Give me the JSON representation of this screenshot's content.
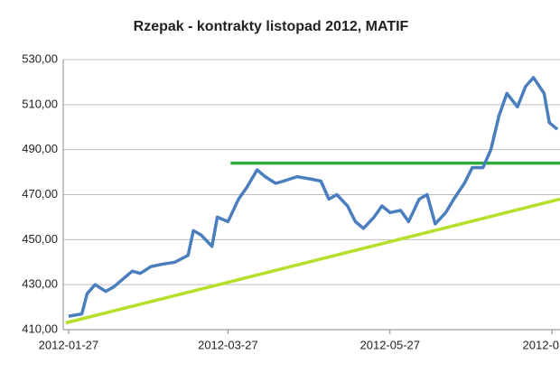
{
  "chart_data": {
    "type": "line",
    "title": "Rzepak - kontrakty listopad 2012, MATIF",
    "xlim": [
      "2012-01-25",
      "2012-07-30"
    ],
    "xticks": [
      "2012-01-27",
      "2012-03-27",
      "2012-05-27",
      {
        "value": "2012-07-27",
        "label": "2012-0"
      }
    ],
    "ylim": [
      410,
      530
    ],
    "yticks": [
      {
        "value": 410,
        "label": "410,00"
      },
      {
        "value": 430,
        "label": "430,00"
      },
      {
        "value": 450,
        "label": "450,00"
      },
      {
        "value": 470,
        "label": "470,00"
      },
      {
        "value": 490,
        "label": "490,00"
      },
      {
        "value": 510,
        "label": "510,00"
      },
      {
        "value": 530,
        "label": "530,00"
      }
    ],
    "grid": true,
    "series": [
      {
        "color": "#4a7ebf",
        "x": [
          "2012-01-27",
          "2012-02-01",
          "2012-02-03",
          "2012-02-06",
          "2012-02-10",
          "2012-02-13",
          "2012-02-17",
          "2012-02-20",
          "2012-02-23",
          "2012-02-27",
          "2012-03-02",
          "2012-03-07",
          "2012-03-12",
          "2012-03-14",
          "2012-03-17",
          "2012-03-21",
          "2012-03-23",
          "2012-03-27",
          "2012-03-31",
          "2012-04-03",
          "2012-04-07",
          "2012-04-10",
          "2012-04-14",
          "2012-04-17",
          "2012-04-22",
          "2012-04-27",
          "2012-05-01",
          "2012-05-04",
          "2012-05-07",
          "2012-05-11",
          "2012-05-14",
          "2012-05-17",
          "2012-05-21",
          "2012-05-24",
          "2012-05-27",
          "2012-05-31",
          "2012-06-03",
          "2012-06-07",
          "2012-06-10",
          "2012-06-13",
          "2012-06-17",
          "2012-06-20",
          "2012-06-24",
          "2012-06-27",
          "2012-07-01",
          "2012-07-04",
          "2012-07-07",
          "2012-07-10",
          "2012-07-14",
          "2012-07-17",
          "2012-07-20",
          "2012-07-24",
          "2012-07-26",
          "2012-07-29"
        ],
        "values": [
          416,
          417,
          426,
          430,
          427,
          429,
          433,
          436,
          435,
          438,
          439,
          440,
          443,
          454,
          452,
          447,
          460,
          458,
          468,
          473,
          481,
          478,
          475,
          476,
          478,
          477,
          476,
          468,
          470,
          465,
          458,
          455,
          460,
          465,
          462,
          463,
          458,
          468,
          470,
          457,
          462,
          468,
          475,
          482,
          482,
          490,
          505,
          515,
          509,
          518,
          522,
          515,
          502,
          499
        ]
      },
      {
        "color": "#2eaa3c",
        "x": [
          "2012-03-28",
          "2012-07-30"
        ],
        "values": [
          484,
          484
        ]
      },
      {
        "color": "#b5e02a",
        "x": [
          "2012-01-26",
          "2012-07-30"
        ],
        "values": [
          413,
          468
        ]
      }
    ]
  }
}
